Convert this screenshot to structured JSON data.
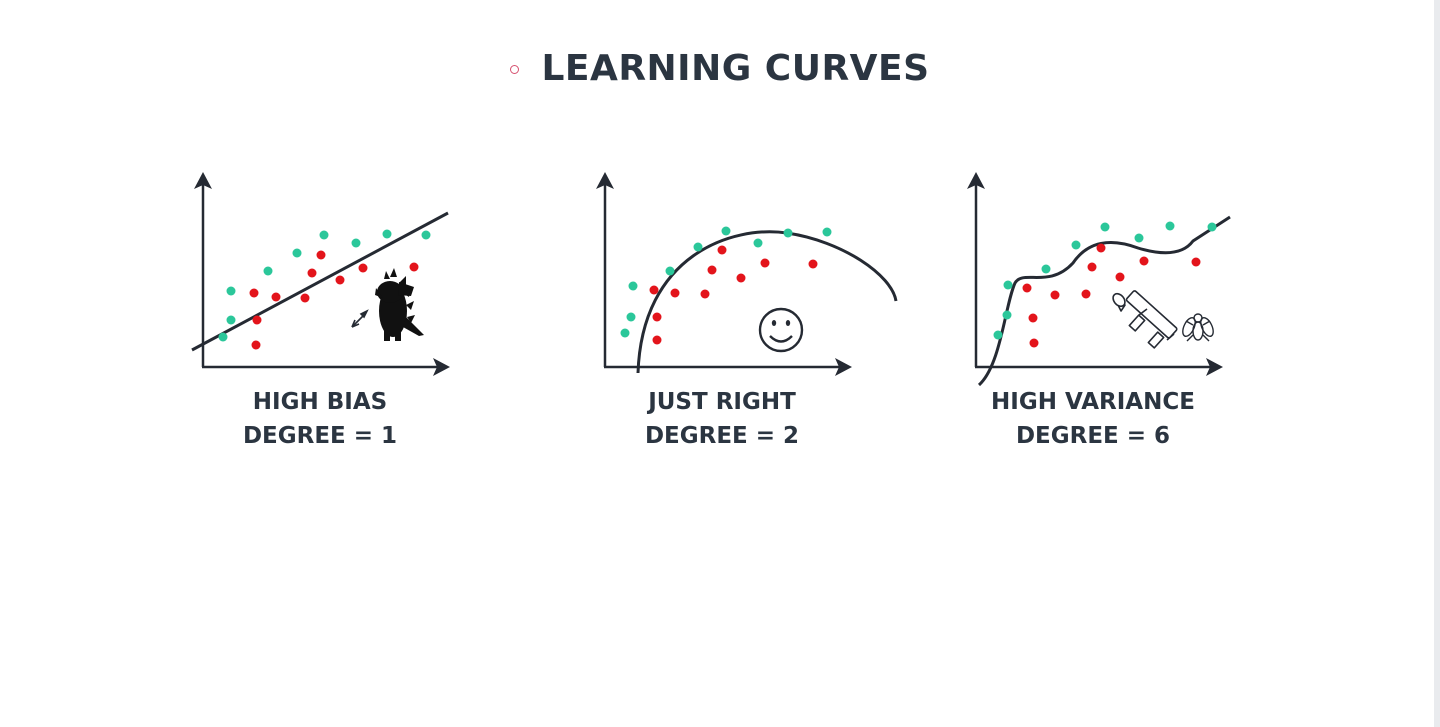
{
  "header": {
    "title": "LEARNING CURVES",
    "bullet_icon": "circle-bullet-icon"
  },
  "colors": {
    "teal": "#2bc79a",
    "red": "#e3141b",
    "ink": "#252a33",
    "title": "#2b3541",
    "bullet": "#d6506f"
  },
  "panels": [
    {
      "id": "high-bias",
      "label": "HIGH BIAS",
      "degree_label": "DEGREE = 1",
      "fit_type": "linear",
      "icons": [
        "godzilla-icon",
        "dart-icon"
      ]
    },
    {
      "id": "just-right",
      "label": "JUST RIGHT",
      "degree_label": "DEGREE = 2",
      "fit_type": "quadratic",
      "icons": [
        "smiley-face-icon"
      ]
    },
    {
      "id": "high-variance",
      "label": "HIGH VARIANCE",
      "degree_label": "DEGREE = 6",
      "fit_type": "polynomial-6",
      "icons": [
        "bazooka-icon",
        "fly-icon"
      ]
    }
  ]
}
